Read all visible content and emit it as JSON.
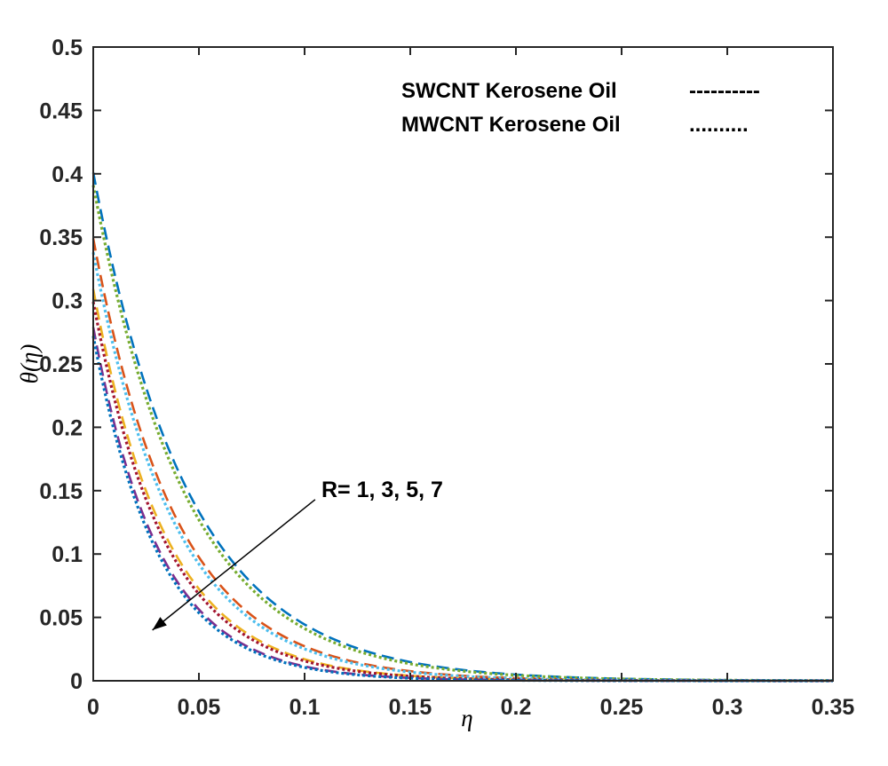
{
  "chart_data": {
    "type": "line",
    "title": "",
    "xlabel": "η",
    "ylabel": "θ(η)",
    "xlim": [
      0,
      0.35
    ],
    "ylim": [
      0,
      0.5
    ],
    "xticks": [
      0,
      0.05,
      0.1,
      0.15,
      0.2,
      0.25,
      0.3,
      0.35
    ],
    "xtick_labels": [
      "0",
      "0.05",
      "0.1",
      "0.15",
      "0.2",
      "0.25",
      "0.3",
      "0.35"
    ],
    "yticks": [
      0,
      0.05,
      0.1,
      0.15,
      0.2,
      0.25,
      0.3,
      0.35,
      0.4,
      0.45,
      0.5
    ],
    "ytick_labels": [
      "0",
      "0.05",
      "0.1",
      "0.15",
      "0.2",
      "0.25",
      "0.3",
      "0.35",
      "0.4",
      "0.45",
      "0.5"
    ],
    "grid": false,
    "legend": {
      "placement": "top-right",
      "entries": [
        {
          "label": "SWCNT Kerosene Oil",
          "marker_text": "----------"
        },
        {
          "label": "MWCNT Kerosene Oil",
          "marker_text": ".........."
        }
      ]
    },
    "annotation": {
      "text": "R= 1, 3, 5, 7",
      "arrow_from": [
        0.105,
        0.143
      ],
      "arrow_to": [
        0.028,
        0.04
      ]
    },
    "series": [
      {
        "name": "SWCNT R=1",
        "style": "dashed",
        "color": "#0072BD",
        "theta0": 0.401,
        "decay": 22.0
      },
      {
        "name": "MWCNT R=1",
        "style": "dotted",
        "color": "#77AC30",
        "theta0": 0.391,
        "decay": 22.5
      },
      {
        "name": "SWCNT R=3",
        "style": "dashed",
        "color": "#D95319",
        "theta0": 0.349,
        "decay": 25.5
      },
      {
        "name": "MWCNT R=3",
        "style": "dotted",
        "color": "#4DBEEE",
        "theta0": 0.338,
        "decay": 26.0
      },
      {
        "name": "SWCNT R=5",
        "style": "dashed",
        "color": "#EDB120",
        "theta0": 0.309,
        "decay": 29.0
      },
      {
        "name": "MWCNT R=5",
        "style": "dotted",
        "color": "#A2142F",
        "theta0": 0.299,
        "decay": 29.5
      },
      {
        "name": "SWCNT R=7",
        "style": "dashed",
        "color": "#7E2F8E",
        "theta0": 0.279,
        "decay": 32.0
      },
      {
        "name": "MWCNT R=7",
        "style": "dotted",
        "color": "#0072BD",
        "theta0": 0.272,
        "decay": 32.5
      }
    ]
  }
}
